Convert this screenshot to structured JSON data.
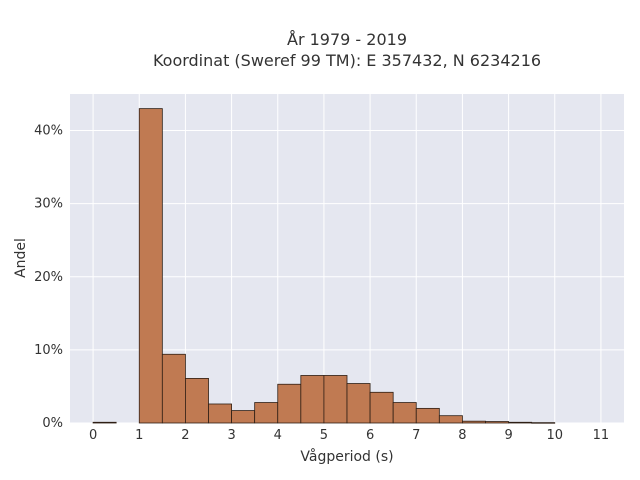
{
  "chart_data": {
    "type": "bar",
    "title": "År 1979 - 2019",
    "subtitle": "Koordinat (Sweref 99 TM): E 357432, N 6234216",
    "xlabel": "Vågperiod (s)",
    "ylabel": "Andel",
    "xlim": [
      -0.5,
      11.5
    ],
    "ylim": [
      0,
      45
    ],
    "x_ticks": [
      0,
      1,
      2,
      3,
      4,
      5,
      6,
      7,
      8,
      9,
      10,
      11
    ],
    "x_tick_labels": [
      "0",
      "1",
      "2",
      "3",
      "4",
      "5",
      "6",
      "7",
      "8",
      "9",
      "10",
      "11"
    ],
    "y_ticks": [
      0,
      10,
      20,
      30,
      40
    ],
    "y_tick_labels": [
      "0%",
      "10%",
      "20%",
      "30%",
      "40%"
    ],
    "grid": true,
    "bin_width": 0.5,
    "bins": [
      {
        "start": 0.0,
        "value": 0.1
      },
      {
        "start": 1.0,
        "value": 43.0
      },
      {
        "start": 1.5,
        "value": 9.4
      },
      {
        "start": 2.0,
        "value": 6.1
      },
      {
        "start": 2.5,
        "value": 2.6
      },
      {
        "start": 3.0,
        "value": 1.7
      },
      {
        "start": 3.5,
        "value": 2.8
      },
      {
        "start": 4.0,
        "value": 5.3
      },
      {
        "start": 4.5,
        "value": 6.5
      },
      {
        "start": 5.0,
        "value": 6.5
      },
      {
        "start": 5.5,
        "value": 5.4
      },
      {
        "start": 6.0,
        "value": 4.2
      },
      {
        "start": 6.5,
        "value": 2.8
      },
      {
        "start": 7.0,
        "value": 2.0
      },
      {
        "start": 7.5,
        "value": 1.0
      },
      {
        "start": 8.0,
        "value": 0.25
      },
      {
        "start": 8.5,
        "value": 0.2
      },
      {
        "start": 9.0,
        "value": 0.1
      },
      {
        "start": 9.5,
        "value": 0.05
      }
    ],
    "colors": {
      "bar_fill": "#c07a52",
      "bar_edge": "#2e1e14",
      "plot_bg": "#e5e7f0",
      "grid": "#ffffff"
    }
  }
}
